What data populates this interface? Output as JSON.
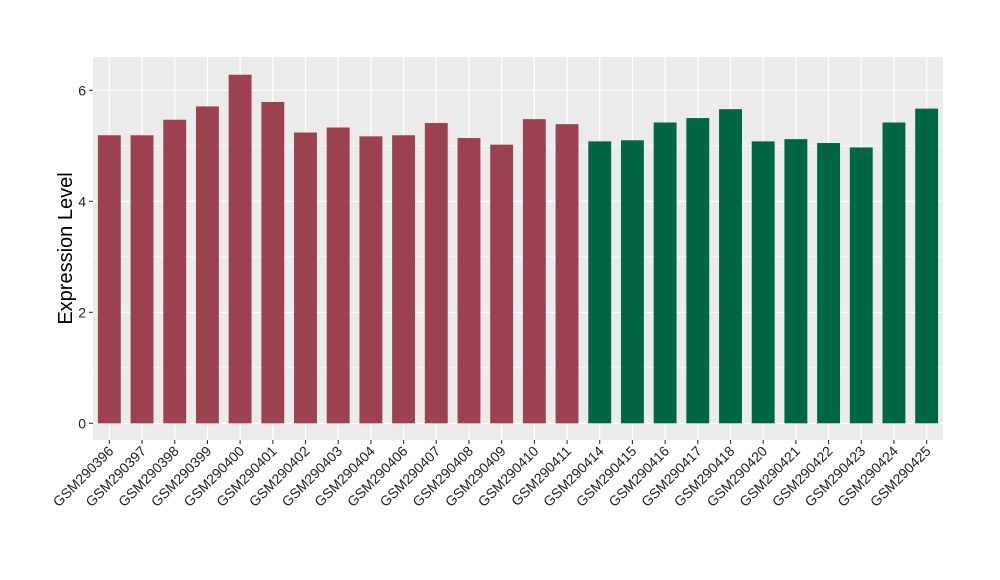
{
  "chart_data": {
    "type": "bar",
    "title": "",
    "xlabel": "",
    "ylabel": "Expression Level",
    "ylim": [
      -0.3,
      6.6
    ],
    "yticks": [
      0,
      2,
      4,
      6
    ],
    "grid": true,
    "legend": "none",
    "categories": [
      "GSM290396",
      "GSM290397",
      "GSM290398",
      "GSM290399",
      "GSM290400",
      "GSM290401",
      "GSM290402",
      "GSM290403",
      "GSM290404",
      "GSM290406",
      "GSM290407",
      "GSM290408",
      "GSM290409",
      "GSM290410",
      "GSM290411",
      "GSM290414",
      "GSM290415",
      "GSM290416",
      "GSM290417",
      "GSM290418",
      "GSM290420",
      "GSM290421",
      "GSM290422",
      "GSM290423",
      "GSM290424",
      "GSM290425"
    ],
    "values": [
      5.19,
      5.19,
      5.47,
      5.71,
      6.28,
      5.79,
      5.24,
      5.33,
      5.17,
      5.19,
      5.41,
      5.14,
      5.02,
      5.48,
      5.39,
      5.08,
      5.1,
      5.42,
      5.5,
      5.66,
      5.08,
      5.12,
      5.05,
      4.97,
      5.42,
      5.67
    ],
    "groups": [
      0,
      0,
      0,
      0,
      0,
      0,
      0,
      0,
      0,
      0,
      0,
      0,
      0,
      0,
      0,
      1,
      1,
      1,
      1,
      1,
      1,
      1,
      1,
      1,
      1,
      1
    ],
    "colors": [
      "#9b4150",
      "#006645"
    ],
    "panel_background": "#ebebeb",
    "grid_color": "#ffffff"
  }
}
